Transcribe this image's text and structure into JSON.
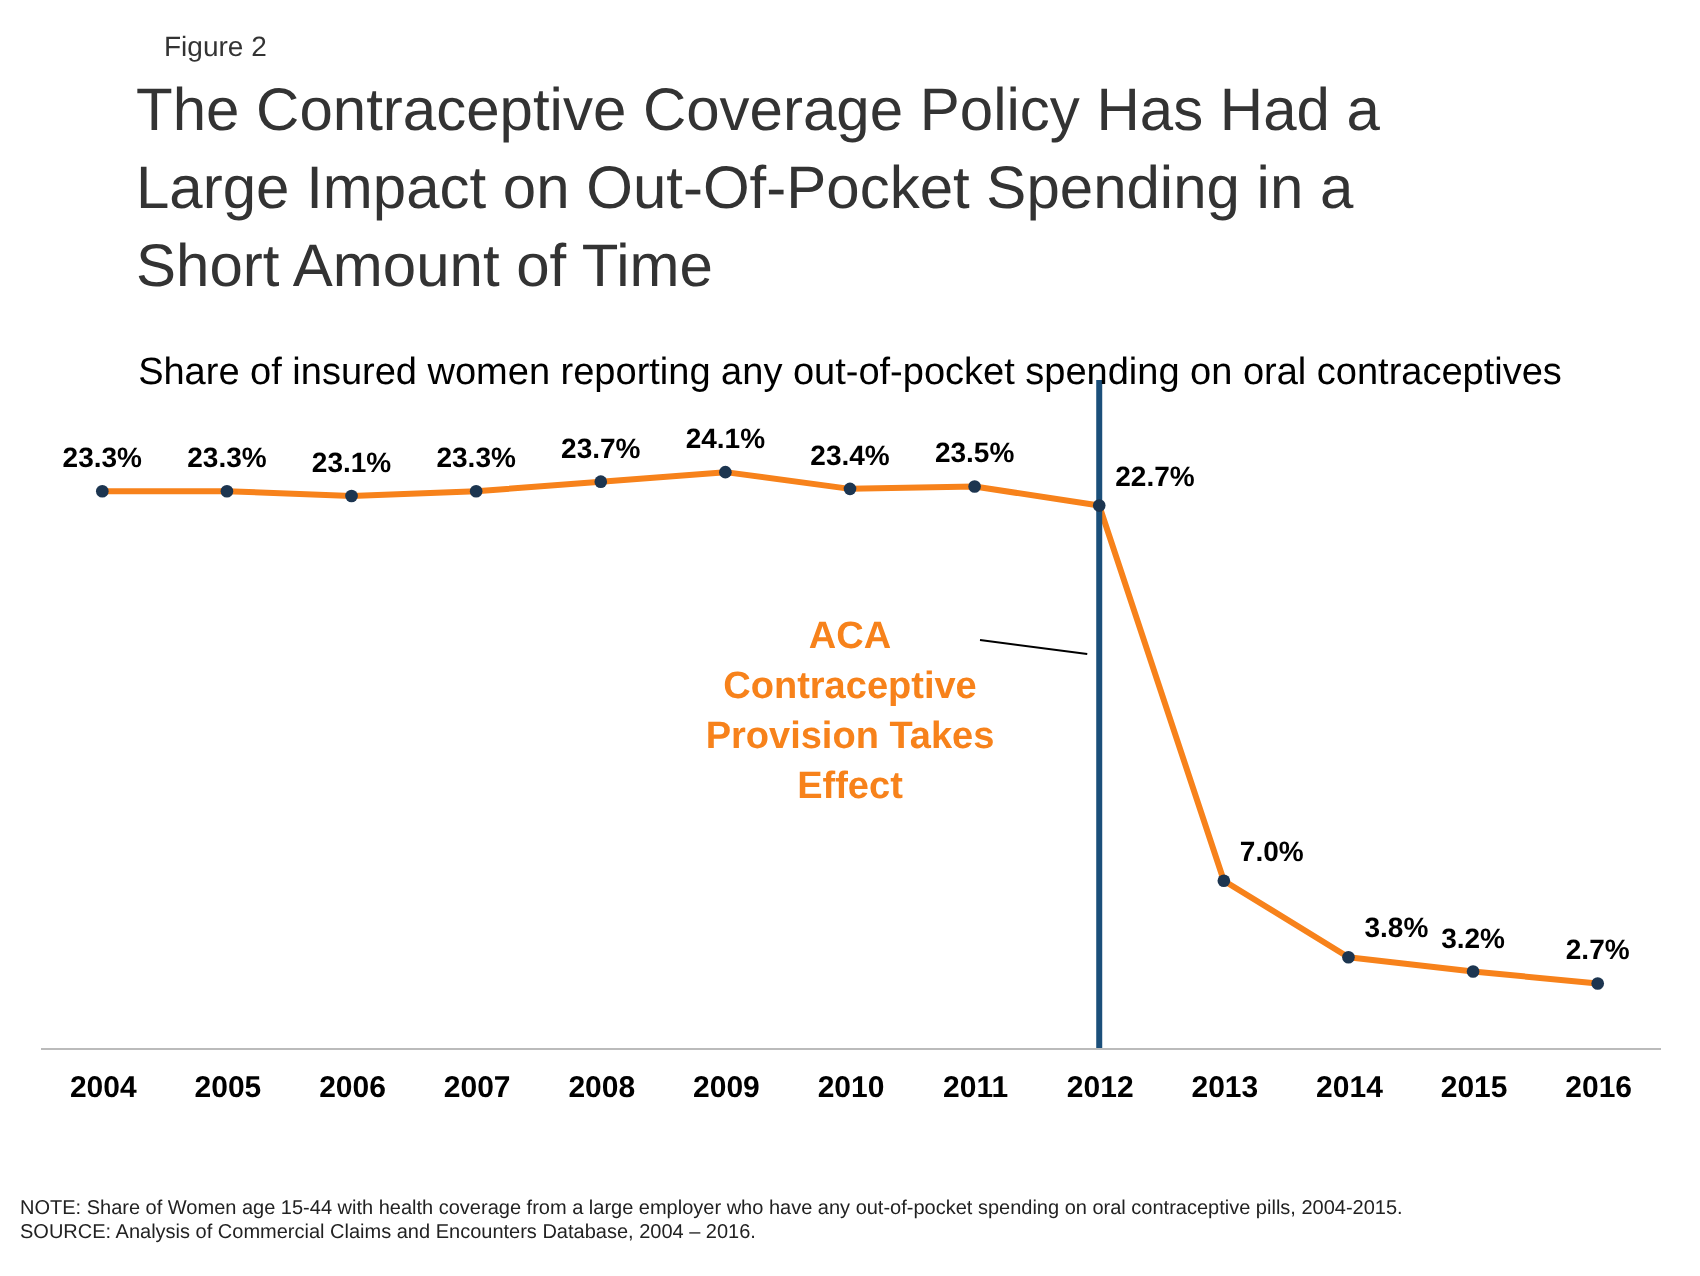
{
  "chart_data": {
    "type": "line",
    "title": "The Contraceptive Coverage Policy Has Had a Large Impact on Out-Of-Pocket Spending in a Short Amount of Time",
    "subtitle": "Share of insured women reporting any out-of-pocket spending on oral contraceptives",
    "categories": [
      "2004",
      "2005",
      "2006",
      "2007",
      "2008",
      "2009",
      "2010",
      "2011",
      "2012",
      "2013",
      "2014",
      "2015",
      "2016"
    ],
    "series": [
      {
        "color": "#f7821b",
        "values": [
          23.3,
          23.3,
          23.1,
          23.3,
          23.7,
          24.1,
          23.4,
          23.5,
          22.7,
          7.0,
          3.8,
          3.2,
          2.7
        ],
        "value_labels": [
          "23.3%",
          "23.3%",
          "23.1%",
          "23.3%",
          "23.7%",
          "24.1%",
          "23.4%",
          "23.5%",
          "22.7%",
          "7.0%",
          "3.8%",
          "3.2%",
          "2.7%"
        ]
      }
    ],
    "marker": "circle",
    "ref_lines": [
      {
        "axis": "x",
        "value": "2012",
        "label": "ACA Contraceptive Provision Takes Effect",
        "color": "#1b4f7a"
      }
    ],
    "annotations": [
      "Figure 2",
      "NOTE: Share of Women age 15-44 with health coverage from a large employer who have any out-of-pocket spending on oral contraceptive pills, 2004-2015.",
      "SOURCE: Analysis of Commercial Claims and Encounters Database, 2004 – 2016."
    ],
    "grid": false
  }
}
